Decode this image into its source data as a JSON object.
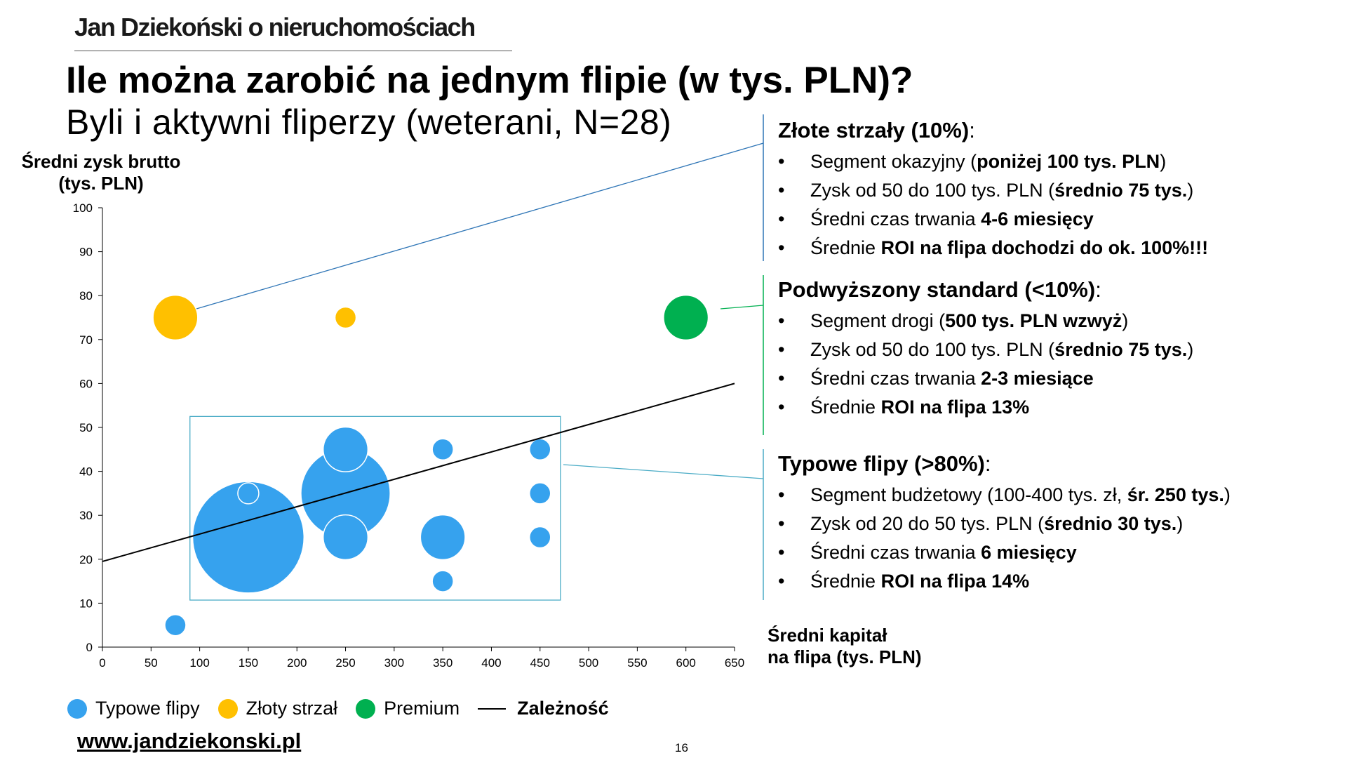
{
  "header": {
    "brand": "Jan Dziekoński o nieruchomościach",
    "title": "Ile można zarobić na jednym flipie (w tys. PLN)?",
    "subtitle": "Byli i aktywni fliperzy (weterani, N=28)"
  },
  "chart_data": {
    "type": "scatter",
    "bubble": true,
    "ylabel_line1": "Średni zysk brutto",
    "ylabel_line2": "(tys. PLN)",
    "xlabel_line1": "Średni kapitał",
    "xlabel_line2": "na flipa (tys. PLN)",
    "xlim": [
      0,
      650
    ],
    "ylim": [
      0,
      100
    ],
    "xticks": [
      "0",
      "50",
      "100",
      "150",
      "200",
      "250",
      "300",
      "350",
      "400",
      "450",
      "500",
      "550",
      "600",
      "650"
    ],
    "yticks": [
      "0",
      "10",
      "20",
      "30",
      "40",
      "50",
      "60",
      "70",
      "80",
      "90",
      "100"
    ],
    "grid": false,
    "legend_position": "bottom",
    "series": [
      {
        "name": "Typowe flipy",
        "color": "#36a2ee",
        "points": [
          {
            "x": 75,
            "y": 5,
            "size": 1
          },
          {
            "x": 150,
            "y": 25,
            "size": 28
          },
          {
            "x": 250,
            "y": 35,
            "size": 18
          },
          {
            "x": 250,
            "y": 25,
            "size": 4.5
          },
          {
            "x": 250,
            "y": 45,
            "size": 4.5
          },
          {
            "x": 150,
            "y": 35,
            "size": 1
          },
          {
            "x": 350,
            "y": 45,
            "size": 1
          },
          {
            "x": 350,
            "y": 25,
            "size": 4.5
          },
          {
            "x": 350,
            "y": 15,
            "size": 1
          },
          {
            "x": 450,
            "y": 45,
            "size": 1
          },
          {
            "x": 450,
            "y": 35,
            "size": 1
          },
          {
            "x": 450,
            "y": 25,
            "size": 1
          }
        ]
      },
      {
        "name": "Złoty strzał",
        "color": "#ffc000",
        "points": [
          {
            "x": 75,
            "y": 75,
            "size": 4.5
          },
          {
            "x": 250,
            "y": 75,
            "size": 1
          }
        ]
      },
      {
        "name": "Premium",
        "color": "#00b050",
        "points": [
          {
            "x": 600,
            "y": 75,
            "size": 4.5
          }
        ]
      }
    ],
    "trendline": {
      "name": "Zależność",
      "color": "#000000",
      "x": [
        0,
        650
      ],
      "y": [
        19.5,
        60
      ]
    }
  },
  "segments": [
    {
      "title": "Złote strzały (10%)",
      "suffix": ":",
      "color": "#2e75b6",
      "bullets": [
        [
          {
            "t": "Segment okazyjny ("
          },
          {
            "t": "poniżej 100 tys. PLN",
            "b": true
          },
          {
            "t": ")"
          }
        ],
        [
          {
            "t": "Zysk od 50 do 100 tys. PLN ("
          },
          {
            "t": "średnio 75 tys.",
            "b": true
          },
          {
            "t": ")"
          }
        ],
        [
          {
            "t": "Średni czas trwania "
          },
          {
            "t": "4-6 miesięcy",
            "b": true
          }
        ],
        [
          {
            "t": "Średnie "
          },
          {
            "t": "ROI na flipa dochodzi do ok. 100%!!!",
            "b": true
          }
        ]
      ]
    },
    {
      "title": "Podwyższony standard (<10%)",
      "suffix": ":",
      "color": "#00b050",
      "bullets": [
        [
          {
            "t": "Segment drogi ("
          },
          {
            "t": "500 tys. PLN wzwyż",
            "b": true
          },
          {
            "t": ")"
          }
        ],
        [
          {
            "t": "Zysk od 50 do 100 tys. PLN ("
          },
          {
            "t": "średnio 75 tys.",
            "b": true
          },
          {
            "t": ")"
          }
        ],
        [
          {
            "t": "Średni czas trwania "
          },
          {
            "t": "2-3 miesiące",
            "b": true
          }
        ],
        [
          {
            "t": "Średnie "
          },
          {
            "t": "ROI na flipa 13%",
            "b": true
          }
        ]
      ]
    },
    {
      "title": "Typowe flipy (>80%)",
      "suffix": ":",
      "color": "#4bacc6",
      "bullets": [
        [
          {
            "t": "Segment budżetowy (100-400 tys. zł, "
          },
          {
            "t": "śr. 250 tys.",
            "b": true
          },
          {
            "t": ")"
          }
        ],
        [
          {
            "t": "Zysk od 20 do 50 tys. PLN ("
          },
          {
            "t": "średnio 30 tys.",
            "b": true
          },
          {
            "t": ")"
          }
        ],
        [
          {
            "t": "Średni czas trwania "
          },
          {
            "t": "6 miesięcy",
            "b": true
          }
        ],
        [
          {
            "t": "Średnie "
          },
          {
            "t": "ROI na flipa 14%",
            "b": true
          }
        ]
      ]
    }
  ],
  "bullet_char": "•",
  "footer": {
    "website": "www.jandziekonski.pl",
    "page_number": "16"
  }
}
